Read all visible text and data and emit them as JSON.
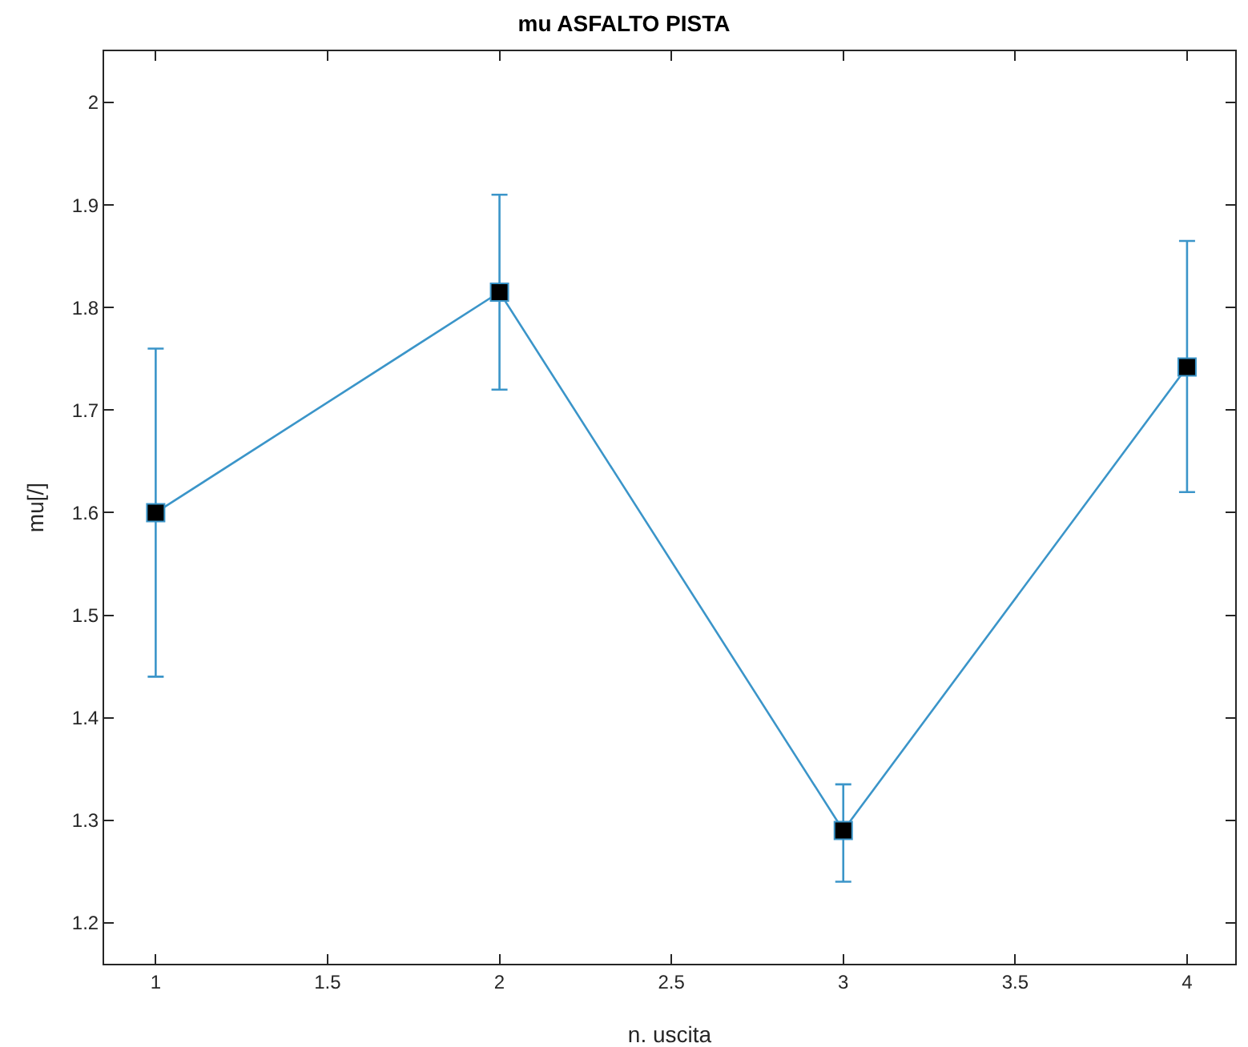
{
  "chart_data": {
    "type": "line",
    "title": "mu ASFALTO PISTA",
    "xlabel": "n. uscita",
    "ylabel": "mu[/]",
    "x": [
      1,
      2,
      3,
      4
    ],
    "series": [
      {
        "color": "#3b95c9",
        "values": [
          1.6,
          1.815,
          1.29,
          1.742
        ],
        "errors": [
          [
            1.44,
            1.76
          ],
          [
            1.72,
            1.91
          ],
          [
            1.24,
            1.335
          ],
          [
            1.62,
            1.865
          ]
        ]
      }
    ],
    "xlim": [
      0.85,
      4.14
    ],
    "xticks": [
      1,
      1.5,
      2,
      2.5,
      3,
      3.5,
      4
    ],
    "ylim": [
      1.16,
      2.05
    ],
    "yticks": [
      1.2,
      1.3,
      1.4,
      1.5,
      1.6,
      1.7,
      1.8,
      1.9,
      2
    ],
    "grid": false,
    "marker": "square",
    "line_style": "solid"
  }
}
